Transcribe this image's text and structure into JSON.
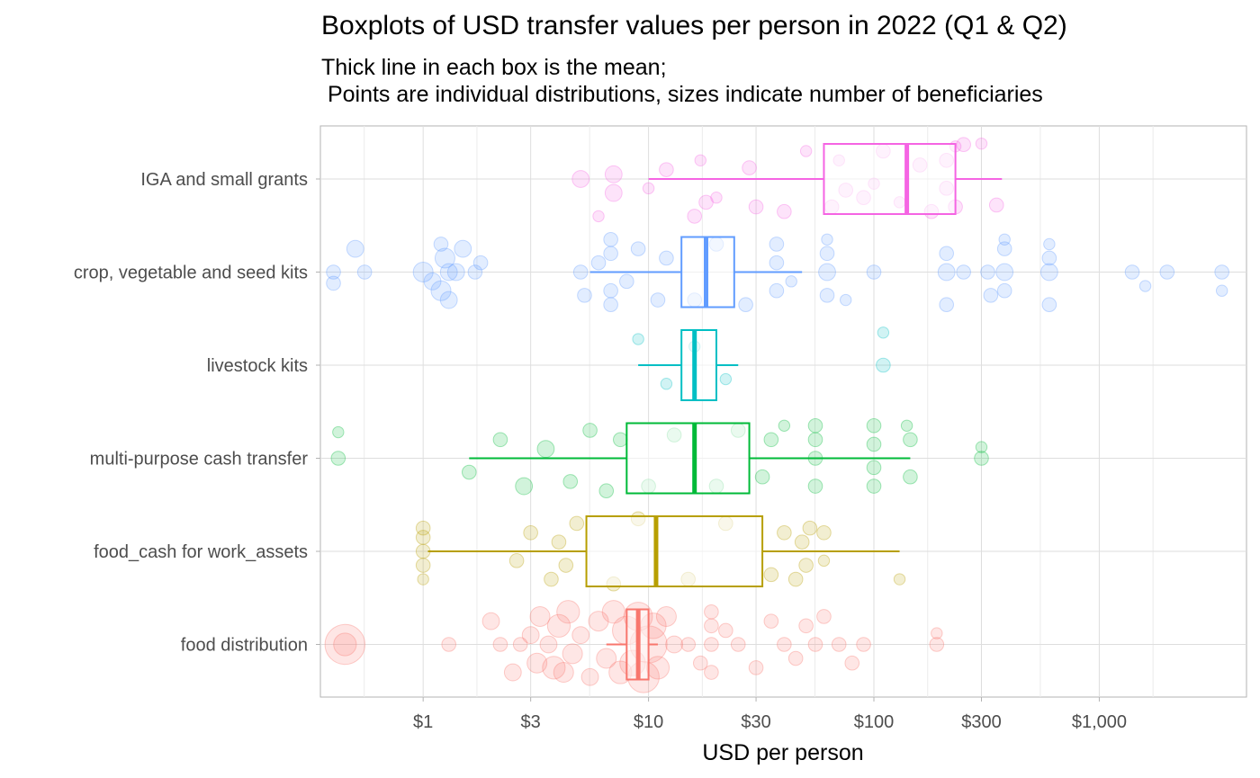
{
  "chart_data": {
    "type": "boxplot",
    "title": "Boxplots of USD transfer values per person in 2022 (Q1 & Q2)",
    "subtitle": "Thick line in each box is the mean;\n Points are individual distributions, sizes indicate number of beneficiaries",
    "xlabel": "USD per person",
    "ylabel": "",
    "x_scale": "log10",
    "xlim": [
      0.35,
      4500
    ],
    "x_ticks": [
      1,
      3,
      10,
      30,
      100,
      300,
      1000
    ],
    "x_tick_labels": [
      "$1",
      "$3",
      "$10",
      "$30",
      "$100",
      "$300",
      "$1,000"
    ],
    "grid": true,
    "legend": "none",
    "categories": [
      "IGA and small grants",
      "crop, vegetable and seed kits",
      "livestock kits",
      "multi-purpose cash transfer",
      "food_cash for work_assets",
      "food distribution"
    ],
    "series": [
      {
        "category": "IGA and small grants",
        "color": "#F564E3",
        "whisker_low": 10,
        "q1": 60,
        "mean": 140,
        "q3": 230,
        "whisker_high": 370,
        "points": [
          {
            "x": 30,
            "y": 0.3,
            "s": 3
          },
          {
            "x": 10,
            "y": 0.1,
            "s": 2
          },
          {
            "x": 16,
            "y": 0.4,
            "s": 3
          },
          {
            "x": 7,
            "y": 0.15,
            "s": 4
          },
          {
            "x": 7,
            "y": -0.05,
            "s": 4
          },
          {
            "x": 5,
            "y": 0.0,
            "s": 4
          },
          {
            "x": 17,
            "y": -0.2,
            "s": 2
          },
          {
            "x": 18,
            "y": 0.25,
            "s": 3
          },
          {
            "x": 12,
            "y": -0.1,
            "s": 3
          },
          {
            "x": 40,
            "y": 0.35,
            "s": 3
          },
          {
            "x": 50,
            "y": -0.3,
            "s": 2
          },
          {
            "x": 65,
            "y": 0.3,
            "s": 3
          },
          {
            "x": 70,
            "y": -0.2,
            "s": 2
          },
          {
            "x": 90,
            "y": 0.2,
            "s": 3
          },
          {
            "x": 110,
            "y": -0.3,
            "s": 3
          },
          {
            "x": 130,
            "y": 0.25,
            "s": 2
          },
          {
            "x": 160,
            "y": -0.15,
            "s": 3
          },
          {
            "x": 180,
            "y": 0.35,
            "s": 3
          },
          {
            "x": 210,
            "y": 0.1,
            "s": 3
          },
          {
            "x": 230,
            "y": -0.35,
            "s": 2
          },
          {
            "x": 250,
            "y": -0.37,
            "s": 3
          },
          {
            "x": 350,
            "y": 0.28,
            "s": 3
          },
          {
            "x": 300,
            "y": -0.38,
            "s": 2
          },
          {
            "x": 230,
            "y": 0.3,
            "s": 3
          },
          {
            "x": 100,
            "y": 0.05,
            "s": 2
          },
          {
            "x": 28,
            "y": -0.12,
            "s": 3
          },
          {
            "x": 20,
            "y": 0.2,
            "s": 2
          },
          {
            "x": 6,
            "y": 0.4,
            "s": 2
          },
          {
            "x": 210,
            "y": -0.2,
            "s": 3
          },
          {
            "x": 75,
            "y": 0.12,
            "s": 3
          }
        ]
      },
      {
        "category": "crop, vegetable and seed kits",
        "color": "#619CFF",
        "whisker_low": 5.5,
        "q1": 14,
        "mean": 18,
        "q3": 24,
        "whisker_high": 48,
        "points": [
          {
            "x": 0.4,
            "y": 0.0,
            "s": 3
          },
          {
            "x": 0.4,
            "y": 0.12,
            "s": 3
          },
          {
            "x": 0.5,
            "y": -0.25,
            "s": 4
          },
          {
            "x": 0.55,
            "y": 0.0,
            "s": 3
          },
          {
            "x": 1.0,
            "y": 0.0,
            "s": 5
          },
          {
            "x": 1.2,
            "y": 0.2,
            "s": 5
          },
          {
            "x": 1.25,
            "y": -0.15,
            "s": 5
          },
          {
            "x": 1.3,
            "y": 0.0,
            "s": 4
          },
          {
            "x": 1.4,
            "y": 0.0,
            "s": 4
          },
          {
            "x": 1.3,
            "y": 0.3,
            "s": 4
          },
          {
            "x": 1.5,
            "y": -0.25,
            "s": 4
          },
          {
            "x": 1.7,
            "y": 0.0,
            "s": 3
          },
          {
            "x": 1.8,
            "y": -0.1,
            "s": 3
          },
          {
            "x": 1.1,
            "y": 0.1,
            "s": 4
          },
          {
            "x": 1.2,
            "y": -0.3,
            "s": 3
          },
          {
            "x": 5,
            "y": 0.0,
            "s": 3
          },
          {
            "x": 5.2,
            "y": 0.25,
            "s": 3
          },
          {
            "x": 6,
            "y": -0.1,
            "s": 3
          },
          {
            "x": 6.8,
            "y": 0.35,
            "s": 3
          },
          {
            "x": 6.8,
            "y": 0.2,
            "s": 3
          },
          {
            "x": 6.8,
            "y": -0.2,
            "s": 3
          },
          {
            "x": 6.8,
            "y": -0.35,
            "s": 3
          },
          {
            "x": 8,
            "y": 0.1,
            "s": 3
          },
          {
            "x": 9,
            "y": -0.25,
            "s": 3
          },
          {
            "x": 11,
            "y": 0.3,
            "s": 3
          },
          {
            "x": 12,
            "y": -0.15,
            "s": 3
          },
          {
            "x": 16,
            "y": 0.3,
            "s": 3
          },
          {
            "x": 20,
            "y": -0.3,
            "s": 3
          },
          {
            "x": 27,
            "y": 0.35,
            "s": 3
          },
          {
            "x": 37,
            "y": 0.2,
            "s": 3
          },
          {
            "x": 37,
            "y": -0.1,
            "s": 3
          },
          {
            "x": 37,
            "y": -0.3,
            "s": 3
          },
          {
            "x": 43,
            "y": 0.1,
            "s": 2
          },
          {
            "x": 62,
            "y": 0.0,
            "s": 4
          },
          {
            "x": 62,
            "y": 0.25,
            "s": 3
          },
          {
            "x": 62,
            "y": -0.2,
            "s": 3
          },
          {
            "x": 62,
            "y": -0.35,
            "s": 2
          },
          {
            "x": 75,
            "y": 0.3,
            "s": 2
          },
          {
            "x": 100,
            "y": 0.0,
            "s": 3
          },
          {
            "x": 210,
            "y": 0.0,
            "s": 4
          },
          {
            "x": 210,
            "y": 0.35,
            "s": 3
          },
          {
            "x": 210,
            "y": -0.2,
            "s": 3
          },
          {
            "x": 250,
            "y": 0.0,
            "s": 3
          },
          {
            "x": 320,
            "y": 0.0,
            "s": 3
          },
          {
            "x": 330,
            "y": 0.25,
            "s": 3
          },
          {
            "x": 380,
            "y": 0.0,
            "s": 4
          },
          {
            "x": 380,
            "y": 0.2,
            "s": 3
          },
          {
            "x": 380,
            "y": -0.25,
            "s": 3
          },
          {
            "x": 380,
            "y": -0.35,
            "s": 2
          },
          {
            "x": 600,
            "y": 0.0,
            "s": 4
          },
          {
            "x": 600,
            "y": 0.35,
            "s": 3
          },
          {
            "x": 600,
            "y": -0.15,
            "s": 3
          },
          {
            "x": 600,
            "y": -0.3,
            "s": 2
          },
          {
            "x": 1400,
            "y": 0.0,
            "s": 3
          },
          {
            "x": 1600,
            "y": 0.15,
            "s": 2
          },
          {
            "x": 2000,
            "y": 0.0,
            "s": 3
          },
          {
            "x": 3500,
            "y": 0.0,
            "s": 3
          },
          {
            "x": 3500,
            "y": 0.2,
            "s": 2
          }
        ]
      },
      {
        "category": "livestock kits",
        "color": "#00BFC4",
        "whisker_low": 9,
        "q1": 14,
        "mean": 16,
        "q3": 20,
        "whisker_high": 25,
        "points": [
          {
            "x": 110,
            "y": 0.0,
            "s": 3
          },
          {
            "x": 110,
            "y": -0.35,
            "s": 2
          },
          {
            "x": 9,
            "y": -0.28,
            "s": 2
          },
          {
            "x": 12,
            "y": 0.2,
            "s": 2
          },
          {
            "x": 16,
            "y": -0.2,
            "s": 2
          },
          {
            "x": 22,
            "y": 0.15,
            "s": 2
          }
        ]
      },
      {
        "category": "multi-purpose cash transfer",
        "color": "#00BA38",
        "whisker_low": 1.6,
        "q1": 8,
        "mean": 16,
        "q3": 28,
        "whisker_high": 145,
        "points": [
          {
            "x": 0.42,
            "y": 0.0,
            "s": 3
          },
          {
            "x": 0.42,
            "y": -0.28,
            "s": 2
          },
          {
            "x": 1.6,
            "y": 0.15,
            "s": 3
          },
          {
            "x": 2.2,
            "y": -0.2,
            "s": 3
          },
          {
            "x": 2.8,
            "y": 0.3,
            "s": 4
          },
          {
            "x": 3.5,
            "y": -0.1,
            "s": 4
          },
          {
            "x": 4.5,
            "y": 0.25,
            "s": 3
          },
          {
            "x": 5.5,
            "y": -0.3,
            "s": 3
          },
          {
            "x": 6.5,
            "y": 0.35,
            "s": 3
          },
          {
            "x": 7.5,
            "y": -0.2,
            "s": 3
          },
          {
            "x": 10,
            "y": 0.3,
            "s": 3
          },
          {
            "x": 13,
            "y": -0.25,
            "s": 3
          },
          {
            "x": 20,
            "y": 0.3,
            "s": 3
          },
          {
            "x": 25,
            "y": -0.3,
            "s": 3
          },
          {
            "x": 32,
            "y": 0.2,
            "s": 3
          },
          {
            "x": 35,
            "y": -0.2,
            "s": 3
          },
          {
            "x": 55,
            "y": 0.3,
            "s": 3
          },
          {
            "x": 55,
            "y": 0.0,
            "s": 3
          },
          {
            "x": 55,
            "y": -0.2,
            "s": 3
          },
          {
            "x": 55,
            "y": -0.35,
            "s": 3
          },
          {
            "x": 100,
            "y": 0.3,
            "s": 3
          },
          {
            "x": 100,
            "y": 0.1,
            "s": 3
          },
          {
            "x": 100,
            "y": -0.15,
            "s": 3
          },
          {
            "x": 100,
            "y": -0.35,
            "s": 3
          },
          {
            "x": 145,
            "y": 0.2,
            "s": 3
          },
          {
            "x": 145,
            "y": -0.2,
            "s": 3
          },
          {
            "x": 140,
            "y": -0.35,
            "s": 2
          },
          {
            "x": 300,
            "y": 0.0,
            "s": 3
          },
          {
            "x": 300,
            "y": -0.12,
            "s": 2
          },
          {
            "x": 40,
            "y": -0.35,
            "s": 2
          }
        ]
      },
      {
        "category": "food_cash for work_assets",
        "color": "#B79F00",
        "whisker_low": 1.05,
        "q1": 5.3,
        "mean": 10.8,
        "q3": 32,
        "whisker_high": 130,
        "points": [
          {
            "x": 1.0,
            "y": 0.15,
            "s": 3
          },
          {
            "x": 1.0,
            "y": 0.0,
            "s": 3
          },
          {
            "x": 1.0,
            "y": -0.15,
            "s": 3
          },
          {
            "x": 1.0,
            "y": -0.25,
            "s": 3
          },
          {
            "x": 1.0,
            "y": 0.3,
            "s": 2
          },
          {
            "x": 2.6,
            "y": 0.1,
            "s": 3
          },
          {
            "x": 3.0,
            "y": -0.2,
            "s": 3
          },
          {
            "x": 3.7,
            "y": 0.3,
            "s": 3
          },
          {
            "x": 4.0,
            "y": -0.1,
            "s": 3
          },
          {
            "x": 4.3,
            "y": 0.15,
            "s": 3
          },
          {
            "x": 4.8,
            "y": -0.3,
            "s": 3
          },
          {
            "x": 7,
            "y": 0.35,
            "s": 3
          },
          {
            "x": 9,
            "y": -0.35,
            "s": 3
          },
          {
            "x": 15,
            "y": 0.3,
            "s": 3
          },
          {
            "x": 22,
            "y": -0.3,
            "s": 3
          },
          {
            "x": 35,
            "y": 0.25,
            "s": 3
          },
          {
            "x": 40,
            "y": -0.2,
            "s": 3
          },
          {
            "x": 45,
            "y": 0.3,
            "s": 3
          },
          {
            "x": 48,
            "y": -0.1,
            "s": 3
          },
          {
            "x": 50,
            "y": 0.15,
            "s": 3
          },
          {
            "x": 52,
            "y": -0.25,
            "s": 3
          },
          {
            "x": 60,
            "y": -0.2,
            "s": 3
          },
          {
            "x": 60,
            "y": 0.1,
            "s": 2
          },
          {
            "x": 130,
            "y": 0.3,
            "s": 2
          }
        ]
      },
      {
        "category": "food distribution",
        "color": "#F8766D",
        "whisker_low": 6.5,
        "q1": 8,
        "mean": 9,
        "q3": 10,
        "whisker_high": 11,
        "points": [
          {
            "x": 0.45,
            "y": 0.0,
            "s": 12
          },
          {
            "x": 0.45,
            "y": 0.0,
            "s": 6
          },
          {
            "x": 1.3,
            "y": 0.0,
            "s": 3
          },
          {
            "x": 2.0,
            "y": -0.25,
            "s": 4
          },
          {
            "x": 2.2,
            "y": 0.0,
            "s": 3
          },
          {
            "x": 2.5,
            "y": 0.3,
            "s": 4
          },
          {
            "x": 2.7,
            "y": 0.0,
            "s": 3
          },
          {
            "x": 3.0,
            "y": -0.1,
            "s": 4
          },
          {
            "x": 3.2,
            "y": 0.2,
            "s": 5
          },
          {
            "x": 3.3,
            "y": -0.3,
            "s": 5
          },
          {
            "x": 3.6,
            "y": 0.0,
            "s": 4
          },
          {
            "x": 3.8,
            "y": 0.25,
            "s": 6
          },
          {
            "x": 4.0,
            "y": -0.2,
            "s": 6
          },
          {
            "x": 4.2,
            "y": 0.3,
            "s": 5
          },
          {
            "x": 4.4,
            "y": -0.35,
            "s": 6
          },
          {
            "x": 4.6,
            "y": 0.1,
            "s": 5
          },
          {
            "x": 5.0,
            "y": -0.1,
            "s": 4
          },
          {
            "x": 5.5,
            "y": 0.35,
            "s": 4
          },
          {
            "x": 6.0,
            "y": -0.25,
            "s": 5
          },
          {
            "x": 6.5,
            "y": 0.15,
            "s": 5
          },
          {
            "x": 7.0,
            "y": -0.35,
            "s": 6
          },
          {
            "x": 7.5,
            "y": 0.3,
            "s": 6
          },
          {
            "x": 8.0,
            "y": -0.15,
            "s": 8
          },
          {
            "x": 8.5,
            "y": 0.2,
            "s": 7
          },
          {
            "x": 9.0,
            "y": -0.3,
            "s": 8
          },
          {
            "x": 9.5,
            "y": 0.35,
            "s": 9
          },
          {
            "x": 10.0,
            "y": 0.0,
            "s": 11
          },
          {
            "x": 10.5,
            "y": -0.2,
            "s": 7
          },
          {
            "x": 11.0,
            "y": 0.25,
            "s": 6
          },
          {
            "x": 12.0,
            "y": -0.3,
            "s": 5
          },
          {
            "x": 13.0,
            "y": 0.0,
            "s": 4
          },
          {
            "x": 15.0,
            "y": 0.0,
            "s": 3
          },
          {
            "x": 17.0,
            "y": 0.2,
            "s": 3
          },
          {
            "x": 19.0,
            "y": 0.0,
            "s": 3
          },
          {
            "x": 19.0,
            "y": -0.2,
            "s": 3
          },
          {
            "x": 19.0,
            "y": 0.3,
            "s": 3
          },
          {
            "x": 19.0,
            "y": -0.35,
            "s": 3
          },
          {
            "x": 22.0,
            "y": -0.15,
            "s": 3
          },
          {
            "x": 25.0,
            "y": 0.0,
            "s": 3
          },
          {
            "x": 30.0,
            "y": 0.25,
            "s": 3
          },
          {
            "x": 35.0,
            "y": -0.25,
            "s": 3
          },
          {
            "x": 40.0,
            "y": 0.0,
            "s": 3
          },
          {
            "x": 45.0,
            "y": 0.15,
            "s": 3
          },
          {
            "x": 50.0,
            "y": -0.2,
            "s": 3
          },
          {
            "x": 55.0,
            "y": 0.0,
            "s": 3
          },
          {
            "x": 60.0,
            "y": -0.3,
            "s": 3
          },
          {
            "x": 70.0,
            "y": 0.0,
            "s": 3
          },
          {
            "x": 80.0,
            "y": 0.2,
            "s": 3
          },
          {
            "x": 90.0,
            "y": 0.0,
            "s": 3
          },
          {
            "x": 190.0,
            "y": 0.0,
            "s": 3
          },
          {
            "x": 190.0,
            "y": -0.12,
            "s": 2
          }
        ]
      }
    ]
  }
}
